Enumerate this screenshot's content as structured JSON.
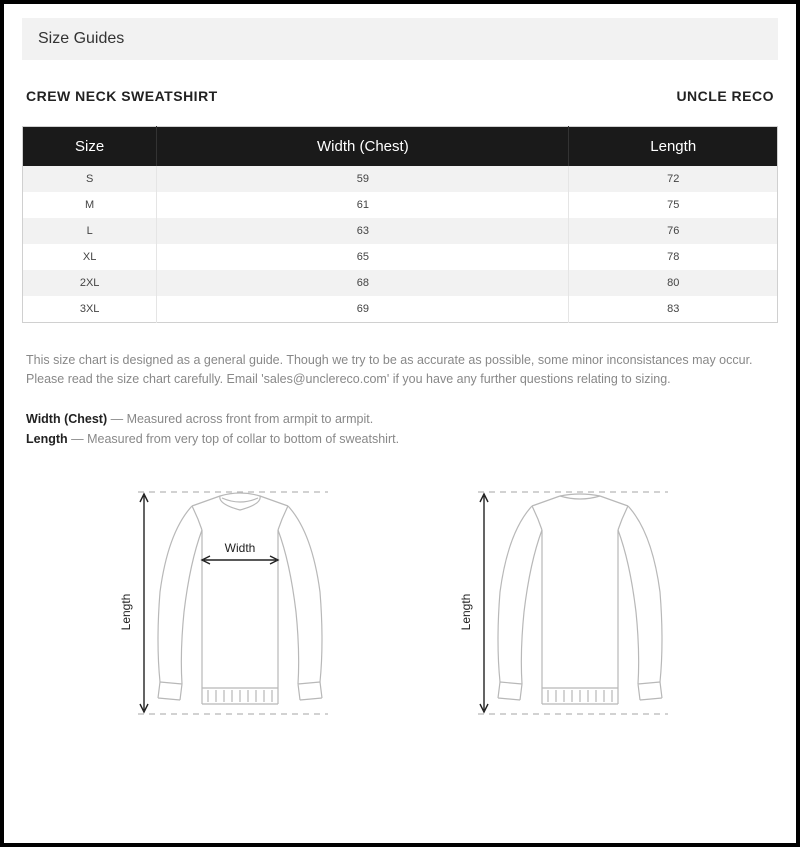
{
  "banner": "Size Guides",
  "product_title": "CREW NECK SWEATSHIRT",
  "brand": "UNCLE RECO",
  "table": {
    "columns": [
      "Size",
      "Width (Chest)",
      "Length"
    ],
    "rows": [
      [
        "S",
        "59",
        "72"
      ],
      [
        "M",
        "61",
        "75"
      ],
      [
        "L",
        "63",
        "76"
      ],
      [
        "XL",
        "65",
        "78"
      ],
      [
        "2XL",
        "68",
        "80"
      ],
      [
        "3XL",
        "69",
        "83"
      ]
    ],
    "header_bg": "#1a1a1a",
    "header_fg": "#ffffff",
    "row_alt_bg": "#f2f2f2",
    "border_color": "#d0d0d0",
    "cell_fontsize": 11
  },
  "disclaimer": "This size chart is designed as a general guide. Though we try to be as accurate as possible, some minor inconsistances may occur. Please read the size chart carefully. Email 'sales@unclereco.com' if you have any further questions relating to sizing.",
  "definitions": [
    {
      "term": "Width (Chest)",
      "desc": " — Measured across front from armpit to armpit."
    },
    {
      "term": "Length",
      "desc": " — Measured from very top of collar to bottom of sweatshirt."
    }
  ],
  "diagram": {
    "label_width": "Width",
    "label_length": "Length",
    "stroke_color": "#b8b8b8",
    "label_color": "#222",
    "dash": "6,5",
    "line_width": 1.2
  },
  "colors": {
    "banner_bg": "#f2f2f2",
    "text_primary": "#222222",
    "text_muted": "#888888",
    "frame_border": "#000000"
  }
}
